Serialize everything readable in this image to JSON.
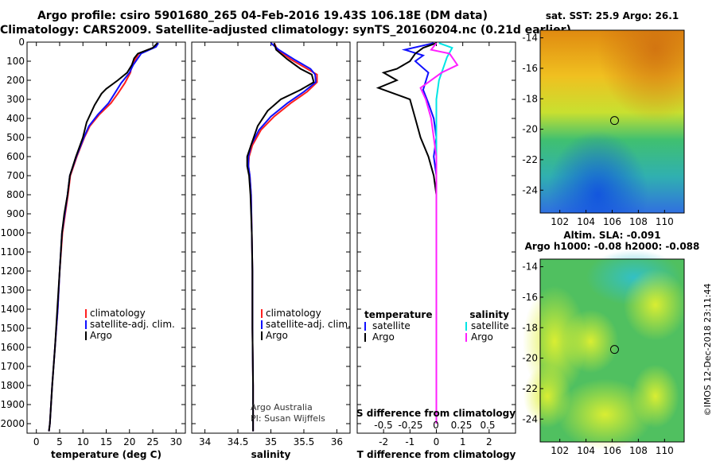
{
  "header": {
    "title_line1": "Argo profile: csiro 5901680_265 04-Feb-2016 19.43S 106.18E (DM data)",
    "title_line2": "Climatology: CARS2009. Satellite-adjusted climatology: synTS_20160204.nc (0.21d earlier)"
  },
  "credits": {
    "org": "Argo Australia",
    "pi": "PI: Susan Wijffels",
    "stamp": "©IMOS 12-Dec-2018 23:11:44"
  },
  "colors": {
    "climatology": "#ff2020",
    "satellite": "#1010ff",
    "argo": "#000000",
    "salinity_satellite": "#00e5e5",
    "salinity_argo": "#ff20ff"
  },
  "chart_data": [
    {
      "type": "line",
      "xlabel": "temperature (deg C)",
      "xlim": [
        -2,
        32
      ],
      "xticks": [
        0,
        5,
        10,
        15,
        20,
        25,
        30
      ],
      "ylim": [
        0,
        2050
      ],
      "yticks": [
        0,
        100,
        200,
        300,
        400,
        500,
        600,
        700,
        800,
        900,
        1000,
        1100,
        1200,
        1300,
        1400,
        1500,
        1600,
        1700,
        1800,
        1900,
        2000
      ],
      "y_inverted": true,
      "legend": [
        "climatology",
        "satellite-adj. clim.",
        "Argo"
      ],
      "series": [
        {
          "name": "climatology",
          "color": "#ff2020",
          "points": [
            [
              26.0,
              5
            ],
            [
              25.5,
              25
            ],
            [
              22.0,
              60
            ],
            [
              20.5,
              120
            ],
            [
              20.2,
              160
            ],
            [
              19.0,
              215
            ],
            [
              17.5,
              270
            ],
            [
              16.0,
              320
            ],
            [
              13.5,
              380
            ],
            [
              11.5,
              440
            ],
            [
              10.3,
              500
            ],
            [
              8.7,
              600
            ],
            [
              7.3,
              700
            ],
            [
              6.8,
              800
            ],
            [
              6.2,
              900
            ],
            [
              5.6,
              1000
            ],
            [
              5.0,
              1200
            ],
            [
              4.6,
              1400
            ],
            [
              4.0,
              1600
            ],
            [
              3.4,
              1800
            ],
            [
              2.9,
              2000
            ],
            [
              2.7,
              2040
            ]
          ]
        },
        {
          "name": "satellite-adj. clim.",
          "color": "#1010ff",
          "points": [
            [
              26.2,
              5
            ],
            [
              25.7,
              25
            ],
            [
              22.5,
              60
            ],
            [
              20.8,
              120
            ],
            [
              20.0,
              160
            ],
            [
              18.2,
              215
            ],
            [
              16.8,
              270
            ],
            [
              15.5,
              320
            ],
            [
              13.2,
              380
            ],
            [
              11.3,
              440
            ],
            [
              10.2,
              500
            ],
            [
              8.6,
              600
            ],
            [
              7.2,
              700
            ],
            [
              6.7,
              800
            ],
            [
              6.1,
              900
            ],
            [
              5.5,
              1000
            ],
            [
              5.0,
              1200
            ],
            [
              4.6,
              1400
            ],
            [
              4.0,
              1600
            ],
            [
              3.4,
              1800
            ],
            [
              2.9,
              2000
            ],
            [
              2.7,
              2040
            ]
          ]
        },
        {
          "name": "Argo",
          "color": "#000000",
          "points": [
            [
              26.0,
              5
            ],
            [
              25.0,
              30
            ],
            [
              21.8,
              60
            ],
            [
              21.0,
              85
            ],
            [
              20.5,
              120
            ],
            [
              19.5,
              160
            ],
            [
              17.5,
              200
            ],
            [
              15.0,
              245
            ],
            [
              14.0,
              270
            ],
            [
              12.5,
              330
            ],
            [
              10.8,
              420
            ],
            [
              10.0,
              500
            ],
            [
              8.5,
              600
            ],
            [
              7.2,
              700
            ],
            [
              6.7,
              800
            ],
            [
              6.0,
              900
            ],
            [
              5.5,
              1000
            ],
            [
              5.0,
              1200
            ],
            [
              4.5,
              1400
            ],
            [
              4.0,
              1600
            ],
            [
              3.4,
              1800
            ],
            [
              2.9,
              2000
            ],
            [
              2.7,
              2040
            ]
          ]
        }
      ]
    },
    {
      "type": "line",
      "xlabel": "salinity",
      "xlim": [
        33.8,
        36.2
      ],
      "xticks": [
        34,
        34.5,
        35,
        35.5,
        36
      ],
      "ylim": [
        0,
        2050
      ],
      "y_inverted": true,
      "legend": [
        "climatology",
        "satellite-adj. clim.",
        "Argo"
      ],
      "series": [
        {
          "name": "climatology",
          "color": "#ff2020",
          "points": [
            [
              35.05,
              5
            ],
            [
              35.1,
              40
            ],
            [
              35.3,
              90
            ],
            [
              35.55,
              140
            ],
            [
              35.7,
              170
            ],
            [
              35.7,
              210
            ],
            [
              35.55,
              260
            ],
            [
              35.3,
              320
            ],
            [
              35.05,
              390
            ],
            [
              34.85,
              460
            ],
            [
              34.72,
              540
            ],
            [
              34.67,
              600
            ],
            [
              34.66,
              650
            ],
            [
              34.68,
              700
            ],
            [
              34.7,
              800
            ],
            [
              34.71,
              1000
            ],
            [
              34.72,
              1200
            ],
            [
              34.72,
              1500
            ],
            [
              34.73,
              1800
            ],
            [
              34.73,
              2000
            ],
            [
              34.73,
              2040
            ]
          ]
        },
        {
          "name": "satellite-adj. clim.",
          "color": "#1010ff",
          "points": [
            [
              35.0,
              5
            ],
            [
              35.12,
              40
            ],
            [
              35.35,
              90
            ],
            [
              35.6,
              140
            ],
            [
              35.67,
              170
            ],
            [
              35.68,
              210
            ],
            [
              35.5,
              260
            ],
            [
              35.25,
              320
            ],
            [
              35.0,
              390
            ],
            [
              34.82,
              460
            ],
            [
              34.7,
              540
            ],
            [
              34.66,
              600
            ],
            [
              34.66,
              650
            ],
            [
              34.68,
              700
            ],
            [
              34.7,
              800
            ],
            [
              34.71,
              1000
            ],
            [
              34.72,
              1200
            ],
            [
              34.72,
              1500
            ],
            [
              34.73,
              1800
            ],
            [
              34.73,
              2000
            ],
            [
              34.73,
              2040
            ]
          ]
        },
        {
          "name": "Argo",
          "color": "#000000",
          "points": [
            [
              35.05,
              5
            ],
            [
              35.08,
              40
            ],
            [
              35.25,
              90
            ],
            [
              35.45,
              140
            ],
            [
              35.62,
              170
            ],
            [
              35.65,
              210
            ],
            [
              35.45,
              250
            ],
            [
              35.15,
              300
            ],
            [
              34.95,
              360
            ],
            [
              34.8,
              440
            ],
            [
              34.7,
              540
            ],
            [
              34.64,
              600
            ],
            [
              34.64,
              650
            ],
            [
              34.67,
              700
            ],
            [
              34.69,
              800
            ],
            [
              34.71,
              1000
            ],
            [
              34.72,
              1200
            ],
            [
              34.72,
              1500
            ],
            [
              34.73,
              1800
            ],
            [
              34.73,
              2000
            ],
            [
              34.73,
              2040
            ]
          ]
        }
      ]
    },
    {
      "type": "line",
      "xlabel": "T difference from climatology",
      "xlabel_top": "S difference from climatology",
      "xlim": [
        -3,
        3
      ],
      "xticks": [
        -2,
        -1,
        0,
        1,
        2
      ],
      "xticks_top": [
        "-0.5",
        "-0.25",
        "0",
        "0.25",
        "0.5"
      ],
      "ylim": [
        0,
        2050
      ],
      "y_inverted": true,
      "legend_temperature_title": "temperature",
      "legend_salinity_title": "salinity",
      "legend_satellite": "satellite",
      "legend_argo": "Argo",
      "series": [
        {
          "name": "T satellite",
          "color": "#1010ff",
          "points": [
            [
              -0.1,
              5
            ],
            [
              -1.2,
              40
            ],
            [
              -0.5,
              70
            ],
            [
              -0.8,
              100
            ],
            [
              -0.3,
              160
            ],
            [
              -0.5,
              250
            ],
            [
              -0.3,
              320
            ],
            [
              -0.1,
              400
            ],
            [
              0.0,
              500
            ],
            [
              -0.1,
              600
            ],
            [
              0.0,
              700
            ],
            [
              0.0,
              1000
            ],
            [
              0.0,
              1500
            ],
            [
              0.0,
              2000
            ]
          ]
        },
        {
          "name": "T Argo",
          "color": "#000000",
          "points": [
            [
              0.0,
              5
            ],
            [
              -0.5,
              30
            ],
            [
              -0.8,
              60
            ],
            [
              -1.0,
              100
            ],
            [
              -1.5,
              140
            ],
            [
              -2.0,
              160
            ],
            [
              -1.5,
              200
            ],
            [
              -2.2,
              240
            ],
            [
              -1.0,
              300
            ],
            [
              -0.8,
              400
            ],
            [
              -0.6,
              500
            ],
            [
              -0.3,
              600
            ],
            [
              -0.1,
              700
            ],
            [
              0.0,
              800
            ],
            [
              0.0,
              1000
            ],
            [
              0.0,
              1500
            ],
            [
              0.0,
              2000
            ]
          ]
        },
        {
          "name": "S satellite",
          "color": "#00e5e5",
          "points": [
            [
              0.1,
              5
            ],
            [
              0.6,
              30
            ],
            [
              0.4,
              80
            ],
            [
              0.3,
              120
            ],
            [
              0.1,
              200
            ],
            [
              0.0,
              300
            ],
            [
              0.0,
              500
            ],
            [
              0.0,
              700
            ],
            [
              0.0,
              1000
            ],
            [
              0.0,
              1500
            ],
            [
              0.0,
              2000
            ]
          ]
        },
        {
          "name": "S Argo",
          "color": "#ff20ff",
          "points": [
            [
              0.0,
              5
            ],
            [
              -0.2,
              40
            ],
            [
              0.5,
              60
            ],
            [
              0.8,
              120
            ],
            [
              0.2,
              160
            ],
            [
              -0.6,
              240
            ],
            [
              -0.4,
              300
            ],
            [
              -0.2,
              400
            ],
            [
              0.0,
              600
            ],
            [
              0.0,
              800
            ],
            [
              0.0,
              1000
            ],
            [
              0.0,
              2000
            ]
          ]
        }
      ]
    },
    {
      "type": "heatmap",
      "title": "sat. SST: 25.9 Argo: 26.1",
      "xlim": [
        100.5,
        111.5
      ],
      "ylim": [
        -25.5,
        -13.5
      ],
      "xticks": [
        102,
        104,
        106,
        108,
        110
      ],
      "yticks": [
        -14,
        -16,
        -18,
        -20,
        -22,
        -24
      ],
      "marker": [
        106.18,
        -19.43
      ]
    },
    {
      "type": "heatmap",
      "title_line1": "Altim. SLA: -0.091",
      "title_line2": "Argo h1000: -0.08 h2000: -0.088",
      "xlim": [
        100.5,
        111.5
      ],
      "ylim": [
        -25.5,
        -13.5
      ],
      "xticks": [
        102,
        104,
        106,
        108,
        110
      ],
      "yticks": [
        -14,
        -16,
        -18,
        -20,
        -22,
        -24
      ],
      "marker": [
        106.18,
        -19.43
      ]
    }
  ]
}
